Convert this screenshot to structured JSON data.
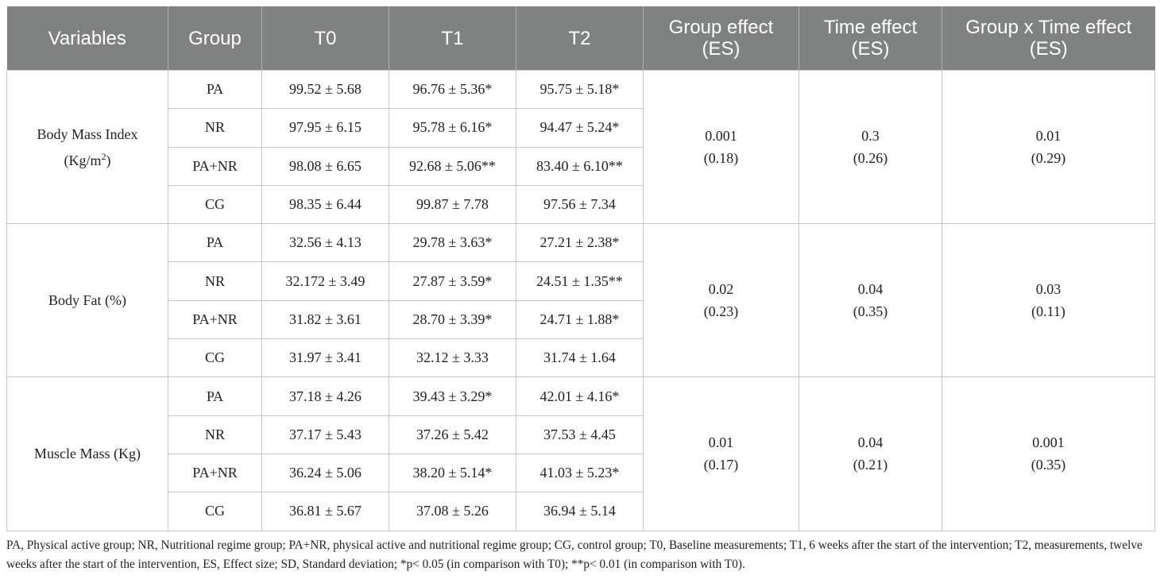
{
  "table": {
    "headers": [
      "Variables",
      "Group",
      "T0",
      "T1",
      "T2",
      "Group effect (ES)",
      "Time effect (ES)",
      "Group x Time effect (ES)"
    ],
    "sections": [
      {
        "variable": "Body Mass Index",
        "unit_prefix": "(Kg/m",
        "unit_sup": "2",
        "unit_suffix": ")",
        "group_effect": "0.001",
        "group_effect_es": "(0.18)",
        "time_effect": "0.3",
        "time_effect_es": "(0.26)",
        "interaction": "0.01",
        "interaction_es": "(0.29)",
        "rows": [
          {
            "group": "PA",
            "t0": "99.52 ± 5.68",
            "t1": "96.76 ± 5.36*",
            "t2": "95.75 ± 5.18*"
          },
          {
            "group": "NR",
            "t0": "97.95 ± 6.15",
            "t1": "95.78 ± 6.16*",
            "t2": "94.47 ± 5.24*"
          },
          {
            "group": "PA+NR",
            "t0": "98.08 ± 6.65",
            "t1": "92.68 ± 5.06**",
            "t2": "83.40 ± 6.10**"
          },
          {
            "group": "CG",
            "t0": "98.35 ± 6.44",
            "t1": "99.87 ± 7.78",
            "t2": "97.56 ± 7.34"
          }
        ]
      },
      {
        "variable": "Body Fat (%)",
        "group_effect": "0.02",
        "group_effect_es": "(0.23)",
        "time_effect": "0.04",
        "time_effect_es": "(0.35)",
        "interaction": "0.03",
        "interaction_es": "(0.11)",
        "rows": [
          {
            "group": "PA",
            "t0": "32.56 ± 4.13",
            "t1": "29.78 ± 3.63*",
            "t2": "27.21 ± 2.38*"
          },
          {
            "group": "NR",
            "t0": "32.172 ± 3.49",
            "t1": "27.87 ± 3.59*",
            "t2": "24.51 ± 1.35**"
          },
          {
            "group": "PA+NR",
            "t0": "31.82 ± 3.61",
            "t1": "28.70 ± 3.39*",
            "t2": "24.71 ± 1.88*"
          },
          {
            "group": "CG",
            "t0": "31.97 ± 3.41",
            "t1": "32.12 ± 3.33",
            "t2": "31.74 ± 1.64"
          }
        ]
      },
      {
        "variable": "Muscle Mass (Kg)",
        "group_effect": "0.01",
        "group_effect_es": "(0.17)",
        "time_effect": "0.04",
        "time_effect_es": "(0.21)",
        "interaction": "0.001",
        "interaction_es": "(0.35)",
        "rows": [
          {
            "group": "PA",
            "t0": "37.18 ± 4.26",
            "t1": "39.43 ± 3.29*",
            "t2": "42.01 ± 4.16*"
          },
          {
            "group": "NR",
            "t0": "37.17 ± 5.43",
            "t1": "37.26 ± 5.42",
            "t2": "37.53 ± 4.45"
          },
          {
            "group": "PA+NR",
            "t0": "36.24 ± 5.06",
            "t1": "38.20 ± 5.14*",
            "t2": "41.03 ± 5.23*"
          },
          {
            "group": "CG",
            "t0": "36.81 ± 5.67",
            "t1": "37.08 ± 5.26",
            "t2": "36.94 ± 5.14"
          }
        ]
      }
    ]
  },
  "footnote": "PA, Physical active group; NR, Nutritional regime group; PA+NR, physical active and nutritional regime group; CG, control group; T0, Baseline measurements; T1, 6 weeks after the start of the intervention; T2, measurements, twelve weeks after the start of the intervention, ES, Effect size; SD, Standard deviation; *p< 0.05 (in comparison with T0); **p< 0.01 (in comparison with T0).",
  "colors": {
    "header_bg": "#7f8280",
    "header_text": "#ffffff",
    "grid": "#c6c6c6"
  }
}
